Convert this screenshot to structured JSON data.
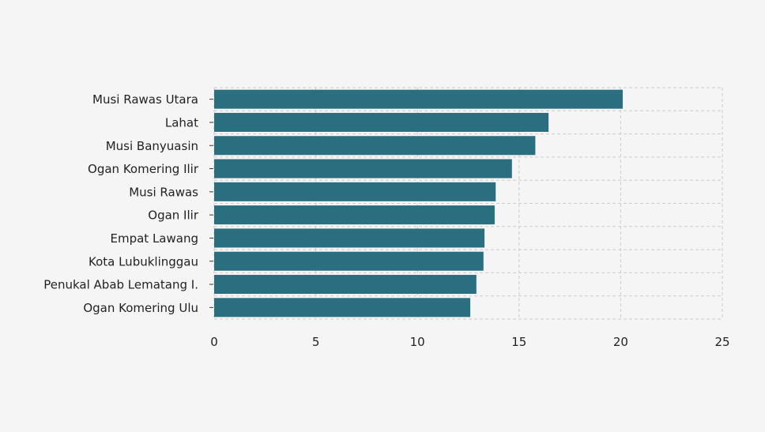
{
  "chart_data": {
    "type": "bar",
    "orientation": "horizontal",
    "title": "",
    "xlabel": "",
    "ylabel": "",
    "categories": [
      "Musi Rawas Utara",
      "Lahat",
      "Musi Banyuasin",
      "Ogan Komering Ilir",
      "Musi Rawas",
      "Ogan Ilir",
      "Empat Lawang",
      "Kota Lubuklinggau",
      "Penukal Abab Lematang I.",
      "Ogan Komering Ulu"
    ],
    "values": [
      20.1,
      16.45,
      15.8,
      14.65,
      13.85,
      13.8,
      13.3,
      13.25,
      12.9,
      12.6
    ],
    "xlim": [
      0,
      25
    ],
    "xticks": [
      0,
      5,
      10,
      15,
      20,
      25
    ],
    "grid": true,
    "legend": "none",
    "bar_color": "#2b6e80",
    "background_color": "#f5f5f5"
  }
}
